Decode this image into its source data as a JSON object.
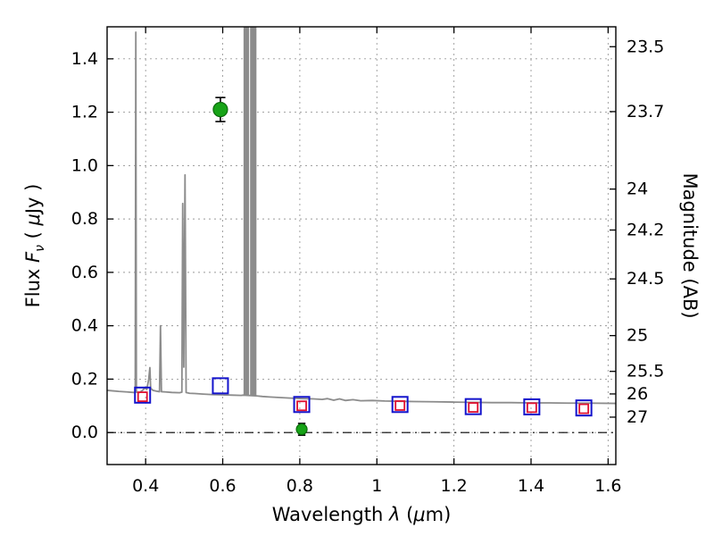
{
  "chart_data": {
    "type": "line",
    "title": "",
    "xlabel_parts": [
      {
        "t": "Wavelength  ",
        "i": false
      },
      {
        "t": "λ",
        "i": true
      },
      {
        "t": " (",
        "i": false
      },
      {
        "t": "μ",
        "i": true
      },
      {
        "t": "m)",
        "i": false
      }
    ],
    "ylabel_left_parts": [
      {
        "t": "Flux  ",
        "i": false
      },
      {
        "t": "F",
        "i": true
      },
      {
        "t": "ν",
        "i": true,
        "sub": true
      },
      {
        "t": "  ( ",
        "i": false
      },
      {
        "t": "μ",
        "i": true
      },
      {
        "t": "Jy )",
        "i": false
      }
    ],
    "ylabel_right": "Magnitude (AB)",
    "xlim": [
      0.3,
      1.62
    ],
    "ylim": [
      -0.12,
      1.52
    ],
    "grid": true,
    "x_ticks": {
      "values": [
        0.4,
        0.6,
        0.8,
        1,
        1.2,
        1.4,
        1.6
      ],
      "labels": [
        "0.4",
        "0.6",
        "0.8",
        "1",
        "1.2",
        "1.4",
        "1.6"
      ]
    },
    "y_ticks_left": {
      "values": [
        0.0,
        0.2,
        0.4,
        0.6,
        0.8,
        1.0,
        1.2,
        1.4
      ],
      "labels": [
        "0.0",
        "0.2",
        "0.4",
        "0.6",
        "0.8",
        "1.0",
        "1.2",
        "1.4"
      ]
    },
    "y_ticks_right": {
      "values": [
        23.5,
        23.7,
        24,
        24.2,
        24.5,
        25,
        25.5,
        26,
        27
      ],
      "labels": [
        "23.5",
        "23.7",
        "24",
        "24.2",
        "24.5",
        "25",
        "25.5",
        "26",
        "27"
      ],
      "zeropoint": 23.9
    },
    "colors": {
      "spectrum": "#8c8c8c",
      "model_square": "#1414cc",
      "band_square": "#e01030",
      "observed_fill": "#17a317",
      "observed_edge": "#0b6b0b",
      "errorbar": "#000000",
      "grid": "#9a9a9a",
      "zero_line": "#000000"
    },
    "zero_line": {
      "y": 0.0
    },
    "emission_bands": [
      {
        "x0": 0.654,
        "x1": 0.6685,
        "base": 0.139
      },
      {
        "x0": 0.671,
        "x1": 0.6875,
        "base": 0.138
      }
    ],
    "series": [
      {
        "name": "spectrum",
        "kind": "line",
        "points": [
          [
            0.3,
            0.158
          ],
          [
            0.33,
            0.154
          ],
          [
            0.352,
            0.152
          ],
          [
            0.368,
            0.15
          ],
          [
            0.373,
            0.15
          ],
          [
            0.3745,
            1.5
          ],
          [
            0.376,
            0.151
          ],
          [
            0.384,
            0.15
          ],
          [
            0.392,
            0.158
          ],
          [
            0.399,
            0.168
          ],
          [
            0.403,
            0.161
          ],
          [
            0.408,
            0.2
          ],
          [
            0.411,
            0.243
          ],
          [
            0.413,
            0.166
          ],
          [
            0.419,
            0.158
          ],
          [
            0.428,
            0.155
          ],
          [
            0.436,
            0.153
          ],
          [
            0.4385,
            0.4
          ],
          [
            0.441,
            0.153
          ],
          [
            0.452,
            0.152
          ],
          [
            0.468,
            0.15
          ],
          [
            0.488,
            0.149
          ],
          [
            0.494,
            0.151
          ],
          [
            0.4962,
            0.858
          ],
          [
            0.499,
            0.245
          ],
          [
            0.5022,
            0.965
          ],
          [
            0.505,
            0.15
          ],
          [
            0.514,
            0.147
          ],
          [
            0.528,
            0.146
          ],
          [
            0.548,
            0.144
          ],
          [
            0.575,
            0.142
          ],
          [
            0.6,
            0.141
          ],
          [
            0.625,
            0.14
          ],
          [
            0.648,
            0.139
          ],
          [
            0.653,
            0.14
          ],
          [
            0.69,
            0.137
          ],
          [
            0.703,
            0.135
          ],
          [
            0.722,
            0.133
          ],
          [
            0.748,
            0.131
          ],
          [
            0.775,
            0.129
          ],
          [
            0.806,
            0.127
          ],
          [
            0.835,
            0.126
          ],
          [
            0.858,
            0.124
          ],
          [
            0.872,
            0.127
          ],
          [
            0.888,
            0.121
          ],
          [
            0.903,
            0.126
          ],
          [
            0.918,
            0.12
          ],
          [
            0.938,
            0.123
          ],
          [
            0.958,
            0.119
          ],
          [
            0.988,
            0.12
          ],
          [
            1.02,
            0.118
          ],
          [
            1.058,
            0.117
          ],
          [
            1.098,
            0.116
          ],
          [
            1.148,
            0.115
          ],
          [
            1.198,
            0.114
          ],
          [
            1.248,
            0.113
          ],
          [
            1.298,
            0.112
          ],
          [
            1.348,
            0.112
          ],
          [
            1.398,
            0.111
          ],
          [
            1.448,
            0.111
          ],
          [
            1.498,
            0.11
          ],
          [
            1.548,
            0.11
          ],
          [
            1.62,
            0.109
          ]
        ]
      },
      {
        "name": "model-photometry",
        "kind": "open-square",
        "size": 17,
        "points": [
          [
            0.392,
            0.14
          ],
          [
            0.594,
            0.175
          ],
          [
            0.805,
            0.105
          ],
          [
            1.06,
            0.105
          ],
          [
            1.25,
            0.097
          ],
          [
            1.402,
            0.096
          ],
          [
            1.537,
            0.092
          ]
        ]
      },
      {
        "name": "band-photometry",
        "kind": "open-square-small",
        "size": 10,
        "points": [
          [
            0.392,
            0.134
          ],
          [
            0.805,
            0.1
          ],
          [
            1.06,
            0.101
          ],
          [
            1.25,
            0.094
          ],
          [
            1.402,
            0.093
          ],
          [
            1.537,
            0.089
          ]
        ]
      },
      {
        "name": "observed-photometry",
        "kind": "circle-errorbar",
        "points": [
          [
            0.594,
            1.21,
            0.045,
            8
          ],
          [
            0.805,
            0.012,
            0.022,
            6
          ]
        ]
      }
    ]
  }
}
